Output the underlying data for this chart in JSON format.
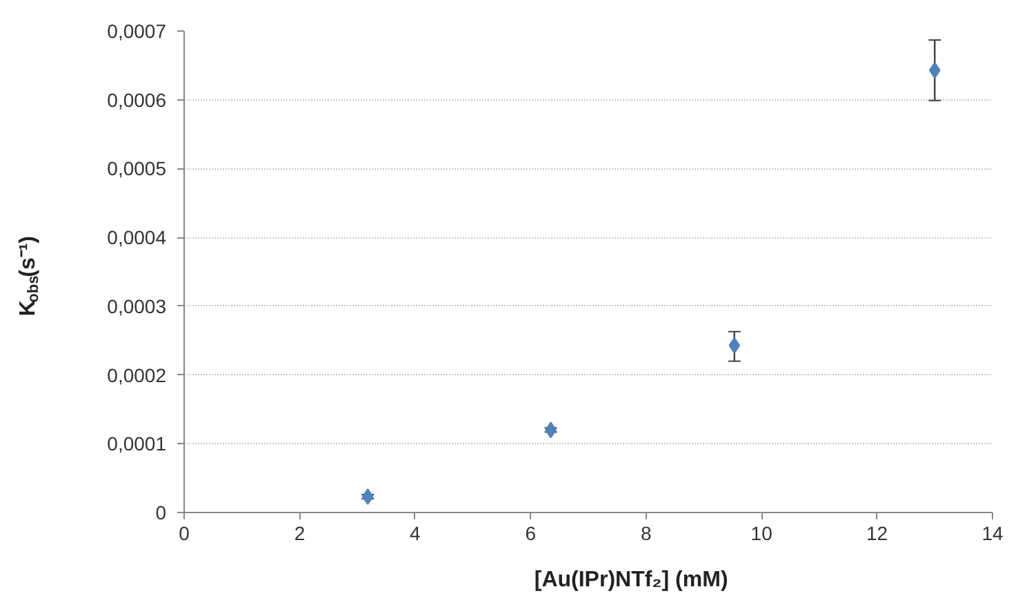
{
  "chart_data": {
    "type": "scatter",
    "xlabel": "[Au(IPr)NTf₂] (mM)",
    "ylabel": "K$_{obs}$(s⁻¹)",
    "x": [
      3.18,
      6.35,
      9.53,
      13.0
    ],
    "series": [
      {
        "color": "#4f81bd",
        "values": [
          2.3e-05,
          0.00012,
          0.000243,
          0.000643
        ],
        "errors": [
          3e-06,
          3e-06,
          [
            0.00022,
            0.000263
          ],
          [
            0.000599,
            0.000687
          ]
        ]
      }
    ],
    "xlim": [
      0,
      14
    ],
    "xticks": [
      0,
      2,
      4,
      6,
      8,
      10,
      12,
      14
    ],
    "ylim": [
      0,
      0.0007
    ],
    "yticks": [
      {
        "value": 0,
        "label": "0"
      },
      {
        "value": 0.0001,
        "label": "0,0001"
      },
      {
        "value": 0.0002,
        "label": "0,0002"
      },
      {
        "value": 0.0003,
        "label": "0,0003"
      },
      {
        "value": 0.0004,
        "label": "0,0004"
      },
      {
        "value": 0.0005,
        "label": "0,0005"
      },
      {
        "value": 0.0006,
        "label": "0,0006"
      },
      {
        "value": 0.0007,
        "label": "0,0007"
      }
    ],
    "grid": "y",
    "marker": "diamond"
  }
}
